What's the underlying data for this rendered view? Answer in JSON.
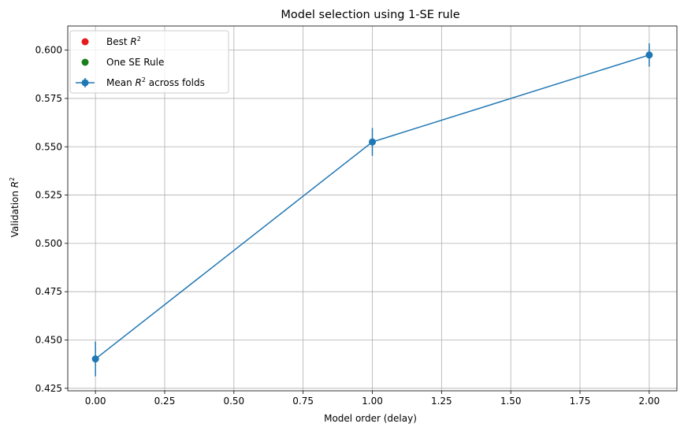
{
  "chart_data": {
    "type": "line",
    "title": "Model selection using 1-SE rule",
    "xlabel": "Model order (delay)",
    "ylabel": {
      "text": "Validation ",
      "var": "R",
      "sup": "2"
    },
    "xlim": [
      -0.1,
      2.1
    ],
    "ylim": [
      0.4237,
      0.6125
    ],
    "grid": true,
    "legend_position": "top-left",
    "x_ticks": [
      0.0,
      0.25,
      0.5,
      0.75,
      1.0,
      1.25,
      1.5,
      1.75,
      2.0
    ],
    "x_tick_labels": [
      "0.00",
      "0.25",
      "0.50",
      "0.75",
      "1.00",
      "1.25",
      "1.50",
      "1.75",
      "2.00"
    ],
    "y_ticks": [
      0.425,
      0.45,
      0.475,
      0.5,
      0.525,
      0.55,
      0.575,
      0.6
    ],
    "y_tick_labels": [
      "0.425",
      "0.450",
      "0.475",
      "0.500",
      "0.525",
      "0.550",
      "0.575",
      "0.600"
    ],
    "series": [
      {
        "name": {
          "pre": "Mean ",
          "var": "R",
          "sup": "2",
          "post": " across folds"
        },
        "kind": "errorbar-line",
        "color": "#1f77b4",
        "x": [
          0,
          1,
          2
        ],
        "y": [
          0.4402,
          0.5525,
          0.5975
        ],
        "yerr": [
          0.009,
          0.0072,
          0.006
        ]
      }
    ],
    "legend": [
      {
        "pre": "Best ",
        "var": "R",
        "sup": "2",
        "post": "",
        "marker": "dot",
        "color": "#e41a1c"
      },
      {
        "pre": "One SE Rule",
        "var": "",
        "sup": "",
        "post": "",
        "marker": "dot",
        "color": "#1a7f1a"
      },
      {
        "pre": "Mean ",
        "var": "R",
        "sup": "2",
        "post": " across folds",
        "marker": "errorbar-line",
        "color": "#1f77b4"
      }
    ]
  }
}
